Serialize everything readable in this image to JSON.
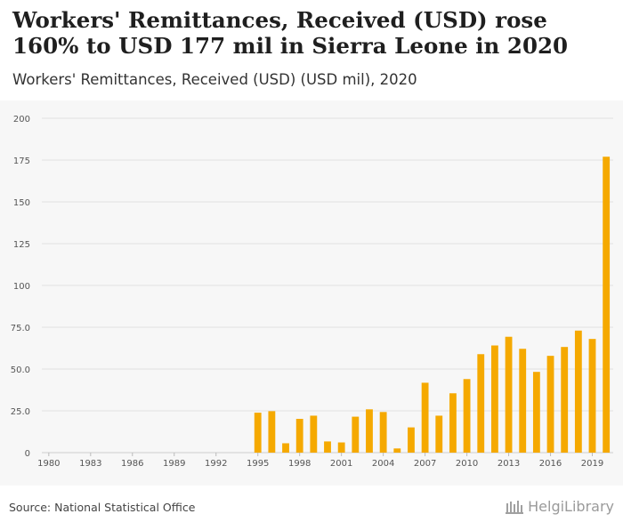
{
  "header": {
    "title": "Workers' Remittances, Received (USD) rose 160% to USD 177 mil in Sierra Leone in 2020",
    "subtitle": "Workers' Remittances, Received (USD) (USD mil), 2020"
  },
  "footer": {
    "source": "Source: National Statistical Office",
    "logo_text": "HelgiLibrary"
  },
  "colors": {
    "bar": "#f5a900",
    "grid": "#e2e2e2",
    "plot_bg": "#f7f7f7",
    "text": "#555555"
  },
  "chart_data": {
    "type": "bar",
    "title": "Workers' Remittances, Received (USD) (USD mil), 2020",
    "categories": [
      "1980",
      "1981",
      "1982",
      "1983",
      "1984",
      "1985",
      "1986",
      "1987",
      "1988",
      "1989",
      "1990",
      "1991",
      "1992",
      "1993",
      "1994",
      "1995",
      "1996",
      "1997",
      "1998",
      "1999",
      "2000",
      "2001",
      "2002",
      "2003",
      "2004",
      "2005",
      "2006",
      "2007",
      "2008",
      "2009",
      "2010",
      "2011",
      "2012",
      "2013",
      "2014",
      "2015",
      "2016",
      "2017",
      "2018",
      "2019",
      "2020"
    ],
    "values": [
      0,
      0,
      0,
      0,
      0,
      0,
      0,
      0,
      0,
      0,
      0,
      0,
      0,
      0,
      0,
      23.9,
      24.8,
      5.6,
      20.2,
      22.1,
      6.7,
      6.1,
      21.5,
      25.9,
      24.3,
      2.5,
      15.1,
      41.8,
      22.1,
      35.5,
      44.0,
      58.9,
      64.1,
      69.3,
      62.1,
      48.3,
      57.9,
      63.2,
      73.0,
      68.0,
      177.0
    ],
    "x_tick_labels": [
      "1980",
      "1983",
      "1986",
      "1989",
      "1992",
      "1995",
      "1998",
      "2001",
      "2004",
      "2007",
      "2010",
      "2013",
      "2016",
      "2019"
    ],
    "y_ticks": [
      0,
      25,
      50,
      75,
      100,
      125,
      150,
      175,
      200
    ],
    "y_tick_labels": [
      "0",
      "25.0",
      "50.0",
      "75.0",
      "100",
      "125",
      "150",
      "175",
      "200"
    ],
    "ylim": [
      0,
      200
    ],
    "xlabel": "",
    "ylabel": "",
    "grid": true
  }
}
